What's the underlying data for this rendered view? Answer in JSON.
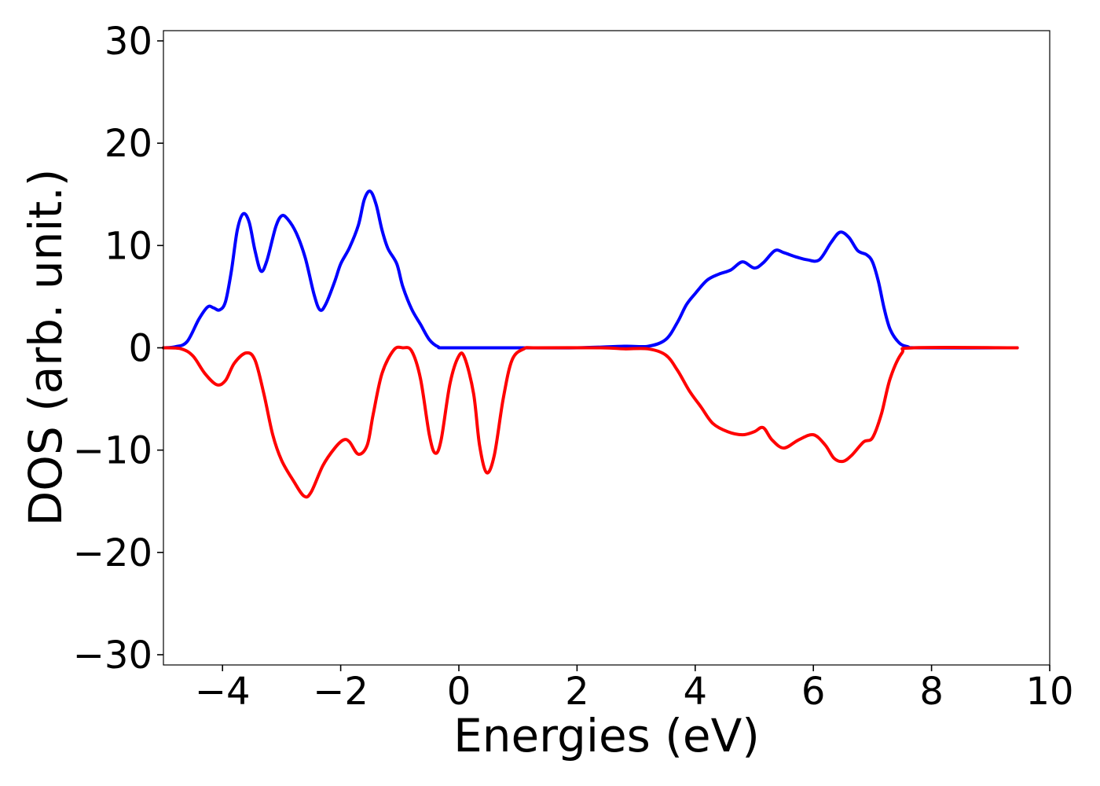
{
  "chart_data": {
    "type": "line",
    "xlabel": "Energies (eV)",
    "ylabel": "DOS (arb. unit.)",
    "xlim": [
      -5,
      10
    ],
    "ylim": [
      -31,
      31
    ],
    "x_ticks": [
      -4,
      -2,
      0,
      2,
      4,
      6,
      8,
      10
    ],
    "x_tick_labels": [
      "−4",
      "−2",
      "0",
      "2",
      "4",
      "6",
      "8",
      "10"
    ],
    "y_ticks": [
      30,
      20,
      10,
      0,
      -10,
      -20,
      -30
    ],
    "y_tick_labels": [
      "30",
      "20",
      "10",
      "0",
      "−10",
      "−20",
      "−30"
    ],
    "grid": false,
    "series": [
      {
        "color": "#0000ff",
        "points": [
          [
            -5.0,
            0.0
          ],
          [
            -4.8,
            0.1
          ],
          [
            -4.6,
            0.6
          ],
          [
            -4.4,
            2.8
          ],
          [
            -4.25,
            4.0
          ],
          [
            -4.15,
            3.9
          ],
          [
            -4.05,
            3.7
          ],
          [
            -3.95,
            4.5
          ],
          [
            -3.85,
            7.5
          ],
          [
            -3.75,
            11.5
          ],
          [
            -3.65,
            13.1
          ],
          [
            -3.55,
            12.3
          ],
          [
            -3.45,
            9.5
          ],
          [
            -3.35,
            7.5
          ],
          [
            -3.25,
            8.5
          ],
          [
            -3.1,
            11.8
          ],
          [
            -3.0,
            12.9
          ],
          [
            -2.9,
            12.6
          ],
          [
            -2.75,
            11.2
          ],
          [
            -2.6,
            8.8
          ],
          [
            -2.45,
            5.2
          ],
          [
            -2.35,
            3.7
          ],
          [
            -2.25,
            4.3
          ],
          [
            -2.1,
            6.5
          ],
          [
            -2.0,
            8.2
          ],
          [
            -1.85,
            9.8
          ],
          [
            -1.7,
            12.0
          ],
          [
            -1.6,
            14.5
          ],
          [
            -1.5,
            15.3
          ],
          [
            -1.4,
            14.0
          ],
          [
            -1.3,
            11.5
          ],
          [
            -1.2,
            9.7
          ],
          [
            -1.05,
            8.2
          ],
          [
            -0.95,
            6.0
          ],
          [
            -0.8,
            3.8
          ],
          [
            -0.65,
            2.3
          ],
          [
            -0.5,
            0.8
          ],
          [
            -0.35,
            0.1
          ],
          [
            -0.2,
            0.0
          ],
          [
            1.0,
            0.0
          ],
          [
            2.0,
            0.0
          ],
          [
            2.8,
            0.15
          ],
          [
            3.2,
            0.15
          ],
          [
            3.5,
            0.8
          ],
          [
            3.7,
            2.5
          ],
          [
            3.85,
            4.2
          ],
          [
            4.0,
            5.3
          ],
          [
            4.2,
            6.6
          ],
          [
            4.4,
            7.2
          ],
          [
            4.6,
            7.6
          ],
          [
            4.8,
            8.4
          ],
          [
            5.0,
            7.8
          ],
          [
            5.15,
            8.3
          ],
          [
            5.35,
            9.5
          ],
          [
            5.5,
            9.3
          ],
          [
            5.7,
            8.9
          ],
          [
            5.9,
            8.6
          ],
          [
            6.1,
            8.6
          ],
          [
            6.3,
            10.3
          ],
          [
            6.45,
            11.3
          ],
          [
            6.6,
            10.8
          ],
          [
            6.75,
            9.5
          ],
          [
            6.9,
            9.1
          ],
          [
            7.0,
            8.4
          ],
          [
            7.1,
            6.5
          ],
          [
            7.2,
            3.8
          ],
          [
            7.3,
            1.8
          ],
          [
            7.45,
            0.5
          ],
          [
            7.6,
            0.1
          ],
          [
            7.8,
            0.0
          ],
          [
            9.45,
            0.0
          ]
        ]
      },
      {
        "color": "#ff0000",
        "points": [
          [
            -5.0,
            0.0
          ],
          [
            -4.7,
            -0.1
          ],
          [
            -4.5,
            -0.8
          ],
          [
            -4.3,
            -2.5
          ],
          [
            -4.1,
            -3.6
          ],
          [
            -3.95,
            -3.2
          ],
          [
            -3.8,
            -1.5
          ],
          [
            -3.6,
            -0.5
          ],
          [
            -3.45,
            -1.2
          ],
          [
            -3.3,
            -4.5
          ],
          [
            -3.15,
            -8.5
          ],
          [
            -3.0,
            -11.0
          ],
          [
            -2.8,
            -13.0
          ],
          [
            -2.62,
            -14.5
          ],
          [
            -2.5,
            -14.1
          ],
          [
            -2.3,
            -11.5
          ],
          [
            -2.1,
            -9.8
          ],
          [
            -1.95,
            -9.0
          ],
          [
            -1.85,
            -9.2
          ],
          [
            -1.7,
            -10.4
          ],
          [
            -1.55,
            -9.5
          ],
          [
            -1.45,
            -6.5
          ],
          [
            -1.3,
            -2.5
          ],
          [
            -1.1,
            -0.2
          ],
          [
            -0.95,
            0.0
          ],
          [
            -0.8,
            -0.3
          ],
          [
            -0.65,
            -3.0
          ],
          [
            -0.5,
            -8.5
          ],
          [
            -0.4,
            -10.3
          ],
          [
            -0.3,
            -9.0
          ],
          [
            -0.15,
            -3.5
          ],
          [
            0.0,
            -0.8
          ],
          [
            0.1,
            -1.0
          ],
          [
            0.25,
            -4.5
          ],
          [
            0.35,
            -9.5
          ],
          [
            0.47,
            -12.2
          ],
          [
            0.6,
            -10.5
          ],
          [
            0.75,
            -5.0
          ],
          [
            0.9,
            -1.2
          ],
          [
            1.1,
            -0.1
          ],
          [
            1.3,
            0.0
          ],
          [
            2.4,
            0.0
          ],
          [
            2.8,
            -0.1
          ],
          [
            3.2,
            -0.1
          ],
          [
            3.5,
            -0.7
          ],
          [
            3.7,
            -2.2
          ],
          [
            3.9,
            -4.2
          ],
          [
            4.1,
            -5.8
          ],
          [
            4.3,
            -7.4
          ],
          [
            4.55,
            -8.2
          ],
          [
            4.8,
            -8.5
          ],
          [
            5.0,
            -8.2
          ],
          [
            5.15,
            -7.8
          ],
          [
            5.3,
            -9.0
          ],
          [
            5.5,
            -9.8
          ],
          [
            5.75,
            -9.0
          ],
          [
            6.0,
            -8.5
          ],
          [
            6.2,
            -9.5
          ],
          [
            6.35,
            -10.8
          ],
          [
            6.5,
            -11.1
          ],
          [
            6.65,
            -10.5
          ],
          [
            6.85,
            -9.2
          ],
          [
            7.0,
            -8.8
          ],
          [
            7.15,
            -6.5
          ],
          [
            7.3,
            -3.0
          ],
          [
            7.5,
            -0.5
          ],
          [
            7.7,
            0.0
          ],
          [
            9.45,
            0.0
          ]
        ]
      }
    ]
  }
}
